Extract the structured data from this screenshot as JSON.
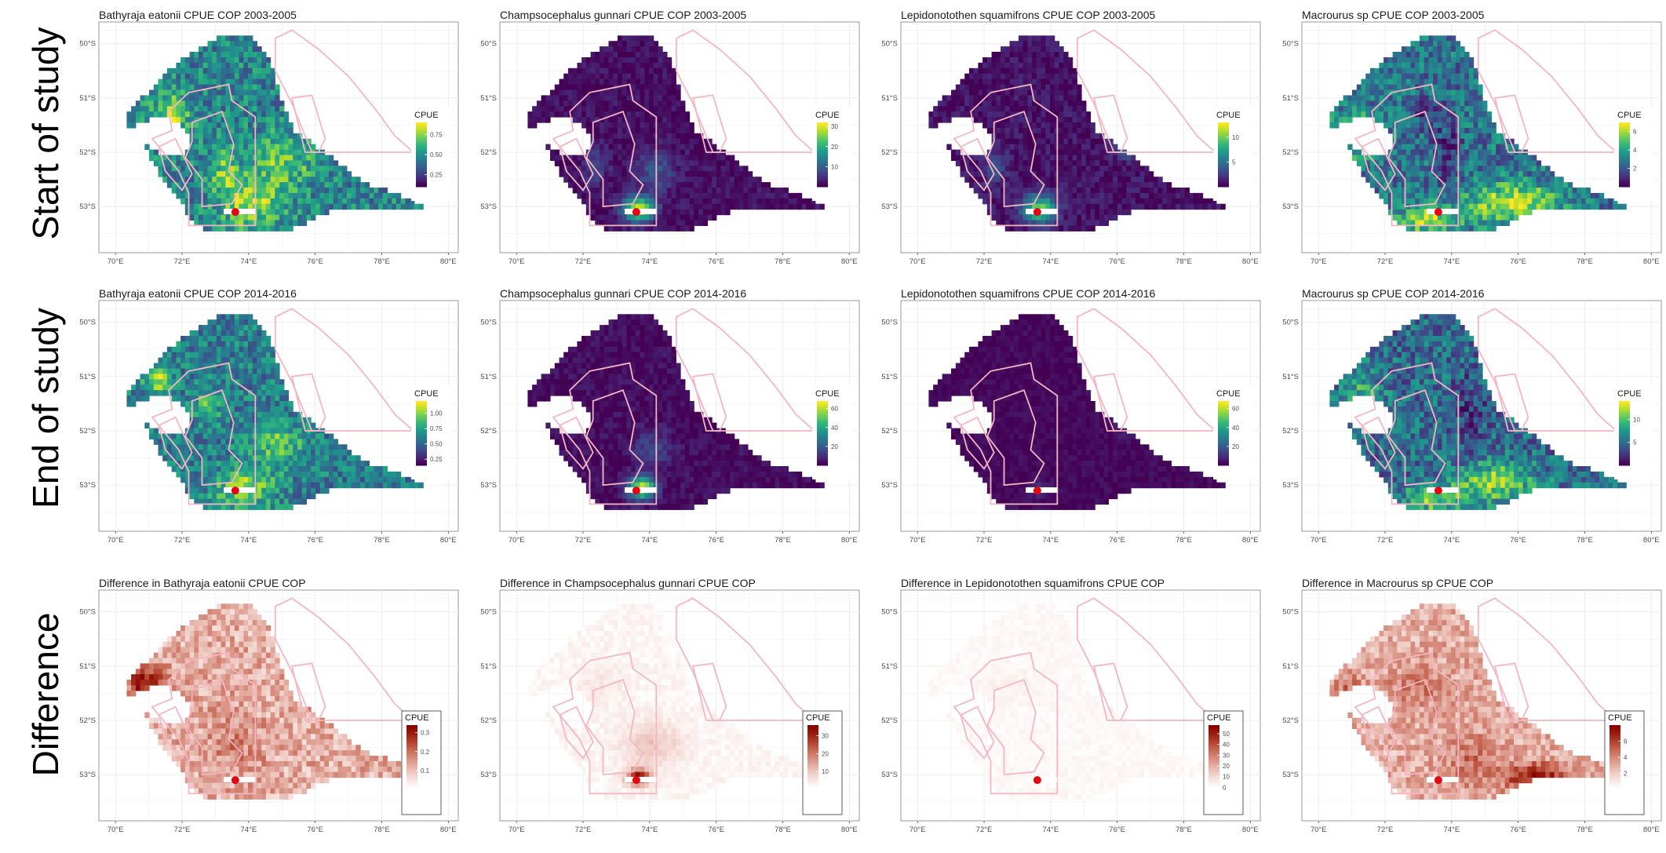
{
  "rows": [
    {
      "label": "Start of study"
    },
    {
      "label": "End of study"
    },
    {
      "label": "Difference"
    }
  ],
  "x_ticks": [
    "70°E",
    "72°E",
    "74°E",
    "76°E",
    "78°E",
    "80°E"
  ],
  "y_ticks": [
    "50°S",
    "51°S",
    "52°S",
    "53°S"
  ],
  "colors": {
    "viridis": [
      "#440154",
      "#482878",
      "#3e4a89",
      "#31688e",
      "#26828e",
      "#1f9e89",
      "#35b779",
      "#6ece58",
      "#b5de2b",
      "#fde725"
    ],
    "reds": [
      "#ffffff",
      "#f7e3df",
      "#ecc2b9",
      "#dd9c8f",
      "#cc7462",
      "#b84b38",
      "#9c2412",
      "#8b0000"
    ],
    "outline": "#f4b6c2",
    "site": "#e30613"
  },
  "chart_data": [
    {
      "type": "heatmap",
      "row": 0,
      "col": 0,
      "species": "Bathyraja eatonii",
      "title": "Bathyraja eatonii  CPUE COP 2003-2005",
      "legend": {
        "title": "CPUE",
        "palette": "viridis",
        "range": [
          0.1,
          0.9
        ],
        "ticks": [
          "0.75",
          "0.50",
          "0.25"
        ],
        "tick_values": [
          0.75,
          0.5,
          0.25
        ]
      },
      "xlim": [
        69.5,
        80.3
      ],
      "ylim": [
        53.85,
        49.6
      ],
      "x_ticks_values": [
        70,
        72,
        74,
        76,
        78,
        80
      ],
      "y_ticks_values": [
        50,
        51,
        52,
        53
      ],
      "site": {
        "lon": 73.6,
        "lat": 53.1
      }
    },
    {
      "type": "heatmap",
      "row": 0,
      "col": 1,
      "species": "Champsocephalus gunnari",
      "title": "Champsocephalus gunnari  CPUE COP 2003-2005",
      "legend": {
        "title": "CPUE",
        "palette": "viridis",
        "range": [
          0,
          32
        ],
        "ticks": [
          "30",
          "20",
          "10"
        ],
        "tick_values": [
          30,
          20,
          10
        ]
      },
      "xlim": [
        69.5,
        80.3
      ],
      "ylim": [
        53.85,
        49.6
      ],
      "site": {
        "lon": 73.6,
        "lat": 53.1
      }
    },
    {
      "type": "heatmap",
      "row": 0,
      "col": 2,
      "species": "Lepidonotothen squamifrons",
      "title": "Lepidonotothen squamifrons  CPUE COP 2003-2005",
      "legend": {
        "title": "CPUE",
        "palette": "viridis",
        "range": [
          0,
          13
        ],
        "ticks": [
          "10",
          "5"
        ],
        "tick_values": [
          10,
          5
        ]
      },
      "xlim": [
        69.5,
        80.3
      ],
      "ylim": [
        53.85,
        49.6
      ],
      "site": {
        "lon": 73.6,
        "lat": 53.1
      }
    },
    {
      "type": "heatmap",
      "row": 0,
      "col": 3,
      "species": "Macrourus sp",
      "title": "Macrourus sp  CPUE COP 2003-2005",
      "legend": {
        "title": "CPUE",
        "palette": "viridis",
        "range": [
          0,
          7
        ],
        "ticks": [
          "6",
          "4",
          "2"
        ],
        "tick_values": [
          6,
          4,
          2
        ]
      },
      "xlim": [
        69.5,
        80.3
      ],
      "ylim": [
        53.85,
        49.6
      ],
      "site": {
        "lon": 73.6,
        "lat": 53.1
      }
    },
    {
      "type": "heatmap",
      "row": 1,
      "col": 0,
      "species": "Bathyraja eatonii",
      "title": "Bathyraja eatonii  CPUE COP 2014-2016",
      "legend": {
        "title": "CPUE",
        "palette": "viridis",
        "range": [
          0.15,
          1.2
        ],
        "ticks": [
          "1.00",
          "0.75",
          "0.50",
          "0.25"
        ],
        "tick_values": [
          1.0,
          0.75,
          0.5,
          0.25
        ]
      },
      "xlim": [
        69.5,
        80.3
      ],
      "ylim": [
        53.85,
        49.6
      ],
      "site": {
        "lon": 73.6,
        "lat": 53.1
      }
    },
    {
      "type": "heatmap",
      "row": 1,
      "col": 1,
      "species": "Champsocephalus gunnari",
      "title": "Champsocephalus gunnari  CPUE COP 2014-2016",
      "legend": {
        "title": "CPUE",
        "palette": "viridis",
        "range": [
          0,
          68
        ],
        "ticks": [
          "60",
          "40",
          "20"
        ],
        "tick_values": [
          60,
          40,
          20
        ]
      },
      "xlim": [
        69.5,
        80.3
      ],
      "ylim": [
        53.85,
        49.6
      ],
      "site": {
        "lon": 73.6,
        "lat": 53.1
      }
    },
    {
      "type": "heatmap",
      "row": 1,
      "col": 2,
      "species": "Lepidonotothen squamifrons",
      "title": "Lepidonotothen squamifrons  CPUE COP 2014-2016",
      "legend": {
        "title": "CPUE",
        "palette": "viridis",
        "range": [
          0,
          68
        ],
        "ticks": [
          "60",
          "40",
          "20"
        ],
        "tick_values": [
          60,
          40,
          20
        ]
      },
      "xlim": [
        69.5,
        80.3
      ],
      "ylim": [
        53.85,
        49.6
      ],
      "site": {
        "lon": 73.6,
        "lat": 53.1
      }
    },
    {
      "type": "heatmap",
      "row": 1,
      "col": 3,
      "species": "Macrourus sp",
      "title": "Macrourus sp  CPUE COP 2014-2016",
      "legend": {
        "title": "CPUE",
        "palette": "viridis",
        "range": [
          0,
          14
        ],
        "ticks": [
          "10",
          "5"
        ],
        "tick_values": [
          10,
          5
        ]
      },
      "xlim": [
        69.5,
        80.3
      ],
      "ylim": [
        53.85,
        49.6
      ],
      "site": {
        "lon": 73.6,
        "lat": 53.1
      }
    },
    {
      "type": "heatmap",
      "row": 2,
      "col": 0,
      "species": "Bathyraja eatonii",
      "title": "Difference in  Bathyraja eatonii CPUE COP",
      "legend": {
        "title": "CPUE",
        "palette": "reds",
        "range": [
          0,
          0.34
        ],
        "ticks": [
          "0.3",
          "0.2",
          "0.1"
        ],
        "tick_values": [
          0.3,
          0.2,
          0.1
        ]
      },
      "xlim": [
        69.5,
        80.3
      ],
      "ylim": [
        53.85,
        49.6
      ],
      "site": {
        "lon": 73.6,
        "lat": 53.1
      }
    },
    {
      "type": "heatmap",
      "row": 2,
      "col": 1,
      "species": "Champsocephalus gunnari",
      "title": "Difference in  Champsocephalus gunnari CPUE COP",
      "legend": {
        "title": "CPUE",
        "palette": "reds",
        "range": [
          0,
          36
        ],
        "ticks": [
          "30",
          "20",
          "10"
        ],
        "tick_values": [
          30,
          20,
          10
        ]
      },
      "xlim": [
        69.5,
        80.3
      ],
      "ylim": [
        53.85,
        49.6
      ],
      "site": {
        "lon": 73.6,
        "lat": 53.1
      }
    },
    {
      "type": "heatmap",
      "row": 2,
      "col": 2,
      "species": "Lepidonotothen squamifrons",
      "title": "Difference in  Lepidonotothen squamifrons CPUE COP",
      "legend": {
        "title": "CPUE",
        "palette": "reds",
        "range": [
          -2,
          58
        ],
        "ticks": [
          "50",
          "40",
          "30",
          "20",
          "10",
          "0"
        ],
        "tick_values": [
          50,
          40,
          30,
          20,
          10,
          0
        ]
      },
      "xlim": [
        69.5,
        80.3
      ],
      "ylim": [
        53.85,
        49.6
      ],
      "site": {
        "lon": 73.6,
        "lat": 53.1
      }
    },
    {
      "type": "heatmap",
      "row": 2,
      "col": 3,
      "species": "Macrourus sp",
      "title": "Difference in  Macrourus sp CPUE COP",
      "legend": {
        "title": "CPUE",
        "palette": "reds",
        "range": [
          0,
          8
        ],
        "ticks": [
          "6",
          "4",
          "2"
        ],
        "tick_values": [
          6,
          4,
          2
        ]
      },
      "xlim": [
        69.5,
        80.3
      ],
      "ylim": [
        53.85,
        49.6
      ],
      "site": {
        "lon": 73.6,
        "lat": 53.1
      }
    }
  ]
}
